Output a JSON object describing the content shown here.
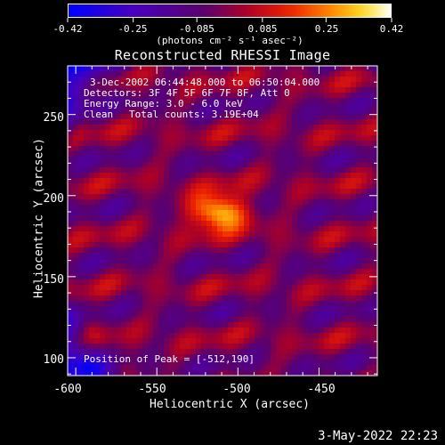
{
  "colorbar": {
    "tick_labels": [
      "-0.42",
      "-0.25",
      "-0.085",
      "0.085",
      "0.25",
      "0.42"
    ],
    "unit_label": "(photons cm⁻² s⁻¹ asec⁻²)",
    "range": [
      -0.42,
      0.42
    ]
  },
  "title": "Reconstructed RHESSI Image",
  "info": {
    "time": "3-Dec-2002 06:44:48.000 to 06:50:04.000",
    "detectors": "Detectors: 3F 4F 5F 6F 7F 8F, Att 0",
    "energy": "Energy Range: 3.0 - 6.0 keV",
    "method": "Clean",
    "counts": "Total counts: 3.19E+04",
    "peak": "Position of Peak = [-512,190]"
  },
  "axes": {
    "xlabel": "Heliocentric X (arcsec)",
    "ylabel": "Heliocentric Y (arcsec)",
    "x_ticks": [
      "-600",
      "-550",
      "-500",
      "-450"
    ],
    "y_ticks": [
      "250",
      "200",
      "150",
      "100"
    ],
    "x_range": [
      -605,
      -414
    ],
    "y_range": [
      89,
      280
    ]
  },
  "peak_position": [
    -512,
    190
  ],
  "timestamp": "3-May-2022 22:23"
}
